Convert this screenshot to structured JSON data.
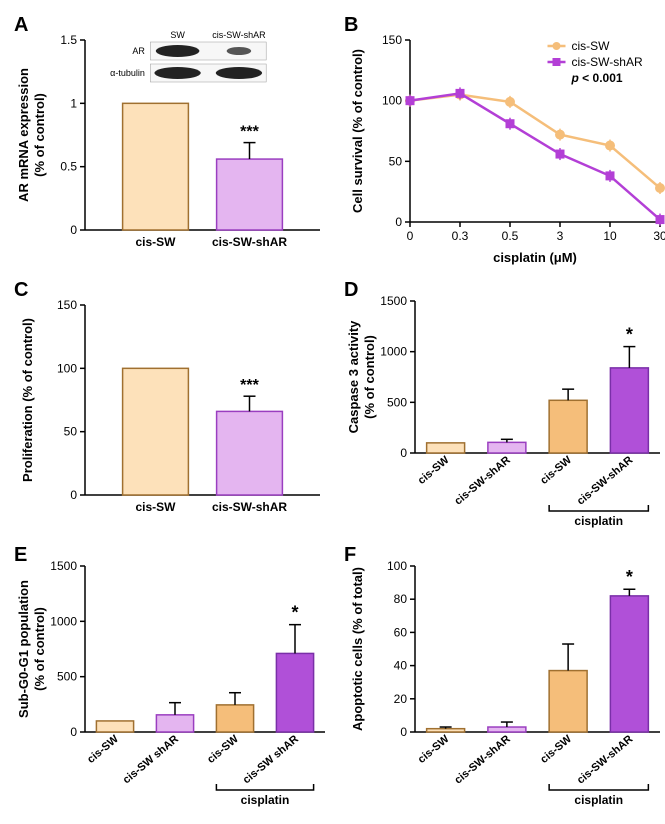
{
  "colors": {
    "cis_sw": "#fde1ba",
    "cis_sw_border": "#a07030",
    "cis_sw_shar": "#e4b5f0",
    "cis_sw_shar_border": "#9a3ec0",
    "cis_sw_shar_dark": "#b050d8",
    "line_sw": "#f5be7a",
    "line_shar": "#b33fd6",
    "black": "#000000"
  },
  "panelA": {
    "label": "A",
    "ylabel1": "AR mRNA expression",
    "ylabel2": "(% of control)",
    "ylim": [
      0,
      1.5
    ],
    "yticks": [
      0,
      0.5,
      1.0,
      1.5
    ],
    "categories": [
      "cis-SW",
      "cis-SW-shAR"
    ],
    "values": [
      1.0,
      0.56
    ],
    "errors": [
      0,
      0.13
    ],
    "bar_colors": [
      "#fde1ba",
      "#e4b5f0"
    ],
    "border_colors": [
      "#a07030",
      "#9a3ec0"
    ],
    "sig": "***",
    "wb": {
      "lanes": [
        "SW",
        "cis-SW-shAR"
      ],
      "rows": [
        "AR",
        "α-tubulin"
      ]
    }
  },
  "panelB": {
    "label": "B",
    "ylabel": "Cell survival (% of control)",
    "xlabel": "cisplatin (μM)",
    "ylim": [
      0,
      150
    ],
    "yticks": [
      0,
      50,
      100,
      150
    ],
    "x_cat": [
      "0",
      "0.3",
      "0.5",
      "3",
      "10",
      "30"
    ],
    "series": [
      {
        "name": "cis-SW",
        "color": "#f5be7a",
        "marker": "circle",
        "y": [
          100,
          105,
          99,
          72,
          63,
          28
        ]
      },
      {
        "name": "cis-SW-shAR",
        "color": "#b33fd6",
        "marker": "square",
        "y": [
          100,
          106,
          81,
          56,
          38,
          2
        ]
      }
    ],
    "p_text": "p < 0.001"
  },
  "panelC": {
    "label": "C",
    "ylabel": "Proliferation (% of control)",
    "ylim": [
      0,
      150
    ],
    "yticks": [
      0,
      50,
      100,
      150
    ],
    "categories": [
      "cis-SW",
      "cis-SW-shAR"
    ],
    "values": [
      100,
      66
    ],
    "errors": [
      0,
      12
    ],
    "bar_colors": [
      "#fde1ba",
      "#e4b5f0"
    ],
    "border_colors": [
      "#a07030",
      "#9a3ec0"
    ],
    "sig": "***"
  },
  "panelD": {
    "label": "D",
    "ylabel1": "Caspase 3 activity",
    "ylabel2": "(% of control)",
    "ylim": [
      0,
      1500
    ],
    "yticks": [
      0,
      500,
      1000,
      1500
    ],
    "categories": [
      "cis-SW",
      "cis-SW-shAR",
      "cis-SW",
      "cis-SW-shAR"
    ],
    "values": [
      100,
      105,
      520,
      840
    ],
    "errors": [
      0,
      30,
      110,
      210
    ],
    "bar_colors": [
      "#fde1ba",
      "#e4b5f0",
      "#f5be7a",
      "#b050d8"
    ],
    "border_colors": [
      "#a07030",
      "#9a3ec0",
      "#a07030",
      "#7a2fa8"
    ],
    "sig": "*",
    "sig_on": 3,
    "bracket_label": "cisplatin",
    "bracket_range": [
      2,
      3
    ]
  },
  "panelE": {
    "label": "E",
    "ylabel1": "Sub-G0-G1 population",
    "ylabel2": "(% of control)",
    "ylim": [
      0,
      1500
    ],
    "yticks": [
      0,
      500,
      1000,
      1500
    ],
    "categories": [
      "cis-SW",
      "cis-SW shAR",
      "cis-SW",
      "cis-SW shAR"
    ],
    "values": [
      100,
      155,
      245,
      710
    ],
    "errors": [
      0,
      110,
      110,
      260
    ],
    "bar_colors": [
      "#fde1ba",
      "#e4b5f0",
      "#f5be7a",
      "#b050d8"
    ],
    "border_colors": [
      "#a07030",
      "#9a3ec0",
      "#a07030",
      "#7a2fa8"
    ],
    "sig": "*",
    "sig_on": 3,
    "bracket_label": "cisplatin",
    "bracket_range": [
      2,
      3
    ]
  },
  "panelF": {
    "label": "F",
    "ylabel": "Apoptotic cells (% of total)",
    "ylim": [
      0,
      100
    ],
    "yticks": [
      0,
      20,
      40,
      60,
      80,
      100
    ],
    "categories": [
      "cis-SW",
      "cis-SW-shAR",
      "cis-SW",
      "cis-SW-shAR"
    ],
    "values": [
      2,
      3,
      37,
      82
    ],
    "errors": [
      1,
      3,
      16,
      4
    ],
    "bar_colors": [
      "#fde1ba",
      "#e4b5f0",
      "#f5be7a",
      "#b050d8"
    ],
    "border_colors": [
      "#a07030",
      "#9a3ec0",
      "#a07030",
      "#7a2fa8"
    ],
    "sig": "*",
    "sig_on": 3,
    "bracket_label": "cisplatin",
    "bracket_range": [
      2,
      3
    ]
  }
}
